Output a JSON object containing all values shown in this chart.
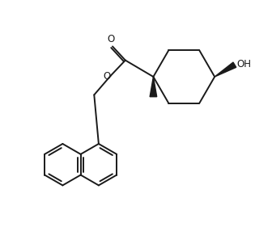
{
  "bg_color": "#ffffff",
  "line_color": "#1a1a1a",
  "line_width": 1.4,
  "figsize": [
    3.36,
    3.02
  ],
  "dpi": 100,
  "xlim": [
    0,
    10
  ],
  "ylim": [
    0,
    9
  ]
}
